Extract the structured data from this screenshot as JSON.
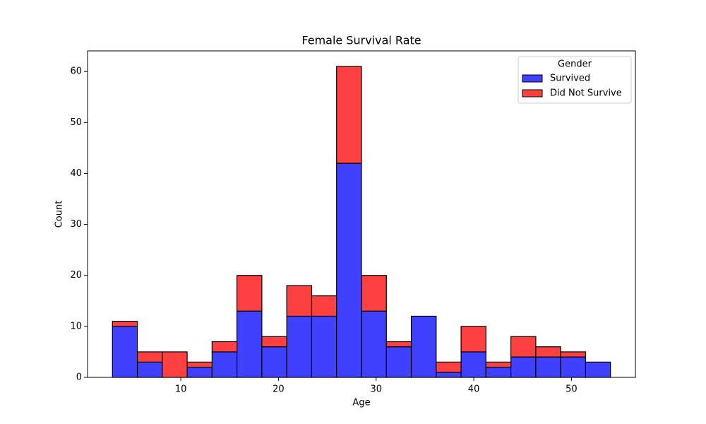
{
  "chart_data": {
    "type": "histogram",
    "title": "Female Survival Rate",
    "x_label": "Age",
    "y_label": "Count",
    "bins": [
      3,
      5.55,
      8.1,
      10.65,
      13.2,
      15.75,
      18.3,
      20.85,
      23.4,
      25.95,
      28.5,
      31.05,
      33.6,
      36.15,
      38.7,
      41.25,
      43.8,
      46.35,
      48.9,
      51.45,
      54
    ],
    "series": [
      {
        "name": "Survived",
        "color": "#4040ff",
        "values": [
          10,
          3,
          0,
          2,
          5,
          13,
          6,
          12,
          12,
          42,
          13,
          6,
          12,
          1,
          5,
          2,
          4,
          4,
          4,
          3
        ]
      },
      {
        "name": "Did Not Survive",
        "color": "#ff4040",
        "values": [
          1,
          2,
          5,
          1,
          2,
          7,
          2,
          6,
          4,
          19,
          7,
          1,
          0,
          2,
          5,
          1,
          4,
          2,
          1,
          0
        ]
      }
    ],
    "stacked": true,
    "legend_title": "Gender",
    "legend": "upper right",
    "xlim": [
      0.45,
      56.55
    ],
    "xticks": [
      10,
      20,
      30,
      40,
      50
    ],
    "ylim": [
      0,
      64.05
    ],
    "yticks": [
      0,
      10,
      20,
      30,
      40,
      50,
      60
    ]
  }
}
